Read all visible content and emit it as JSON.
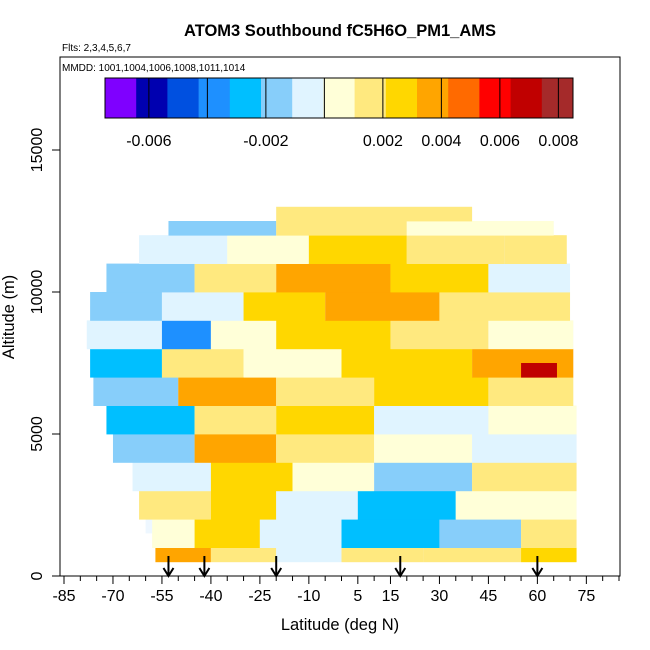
{
  "chart_data": {
    "type": "heatmap",
    "title": "ATOM3 Southbound fC5H6O_PM1_AMS",
    "flights_label": "Flts: 2,3,4,5,6,7",
    "dates_label": "MMDD: 1001,1004,1006,1008,1011,1014",
    "xlabel": "Latitude (deg N)",
    "ylabel": "Altitude (m)",
    "xlim": [
      -85,
      85
    ],
    "ylim": [
      0,
      17500
    ],
    "x_ticks": [
      -85,
      -70,
      -55,
      -40,
      -25,
      -10,
      5,
      15,
      30,
      45,
      60,
      75
    ],
    "x_tick_labels": [
      "-85",
      "-70",
      "-55",
      "-40",
      "-25",
      "-10",
      "5",
      "15",
      "30",
      "45",
      "60",
      "75"
    ],
    "x_minor_ticks": [
      -80,
      -75,
      -65,
      -60,
      -50,
      -45,
      -35,
      -30,
      -20,
      -15,
      -5,
      0,
      10,
      20,
      25,
      35,
      40,
      50,
      55,
      65,
      70,
      80,
      85
    ],
    "y_ticks": [
      0,
      5000,
      10000,
      15000
    ],
    "y_tick_labels": [
      "0",
      "5000",
      "10000",
      "15000"
    ],
    "colorbar": {
      "range": [
        -0.0075,
        0.0085
      ],
      "tick_values": [
        -0.006,
        -0.002,
        0.002,
        0.004,
        0.006,
        0.008
      ],
      "tick_labels": [
        "-0.006",
        "-0.002",
        "0.002",
        "0.004",
        "0.006",
        "0.008"
      ],
      "divisions": [
        -0.006,
        -0.004,
        -0.002,
        0.0,
        0.002,
        0.004,
        0.006,
        0.008
      ],
      "colors": [
        "#7f00ff",
        "#0000b0",
        "#0050e0",
        "#1e90ff",
        "#00bfff",
        "#87cefa",
        "#e0f4ff",
        "#ffffd8",
        "#ffe97f",
        "#ffd700",
        "#ffa500",
        "#ff6a00",
        "#ff0000",
        "#c00000",
        "#a52a2a"
      ]
    },
    "arrow_latitudes": [
      -53,
      -42,
      -20,
      18,
      60
    ],
    "domain_bands": [
      {
        "alt": [
          500,
          1000
        ],
        "lat": [
          -57,
          72
        ]
      },
      {
        "alt": [
          1000,
          1500
        ],
        "lat": [
          -58,
          72
        ]
      },
      {
        "alt": [
          1500,
          2000
        ],
        "lat": [
          -60,
          72
        ]
      },
      {
        "alt": [
          2000,
          2500
        ],
        "lat": [
          -61,
          72
        ]
      },
      {
        "alt": [
          2500,
          3000
        ],
        "lat": [
          -62,
          72
        ]
      },
      {
        "alt": [
          3000,
          3500
        ],
        "lat": [
          -63,
          72
        ]
      },
      {
        "alt": [
          3500,
          4000
        ],
        "lat": [
          -64,
          72
        ]
      },
      {
        "alt": [
          4000,
          4500
        ],
        "lat": [
          -66,
          72
        ]
      },
      {
        "alt": [
          4500,
          5000
        ],
        "lat": [
          -68,
          72
        ]
      },
      {
        "alt": [
          5000,
          5500
        ],
        "lat": [
          -70,
          72
        ]
      },
      {
        "alt": [
          5500,
          6000
        ],
        "lat": [
          -71,
          72
        ]
      },
      {
        "alt": [
          6000,
          6500
        ],
        "lat": [
          -72,
          71
        ]
      },
      {
        "alt": [
          6500,
          7000
        ],
        "lat": [
          -74,
          71
        ]
      },
      {
        "alt": [
          7000,
          7500
        ],
        "lat": [
          -76,
          71
        ]
      },
      {
        "alt": [
          7500,
          8000
        ],
        "lat": [
          -77,
          71
        ]
      },
      {
        "alt": [
          8000,
          8500
        ],
        "lat": [
          -78,
          71
        ]
      },
      {
        "alt": [
          8500,
          9000
        ],
        "lat": [
          -78,
          71
        ]
      },
      {
        "alt": [
          9000,
          9500
        ],
        "lat": [
          -77,
          70
        ]
      },
      {
        "alt": [
          9500,
          10000
        ],
        "lat": [
          -75,
          70
        ]
      },
      {
        "alt": [
          10000,
          10500
        ],
        "lat": [
          -72,
          70
        ]
      },
      {
        "alt": [
          10500,
          11000
        ],
        "lat": [
          -67,
          70
        ]
      },
      {
        "alt": [
          11000,
          11500
        ],
        "lat": [
          -62,
          69
        ]
      },
      {
        "alt": [
          11500,
          12000
        ],
        "lat": [
          -58,
          68
        ]
      },
      {
        "alt": [
          12000,
          12500
        ],
        "lat": [
          -53,
          65
        ]
      },
      {
        "alt": [
          12500,
          13000
        ],
        "lat": [
          -20,
          40
        ]
      }
    ],
    "cells": [
      {
        "lat": [
          -57,
          -40
        ],
        "alt": [
          500,
          1000
        ],
        "v": 0.004
      },
      {
        "lat": [
          -40,
          -20
        ],
        "alt": [
          500,
          1000
        ],
        "v": 0.002
      },
      {
        "lat": [
          -20,
          0
        ],
        "alt": [
          500,
          1000
        ],
        "v": -0.001
      },
      {
        "lat": [
          0,
          25
        ],
        "alt": [
          500,
          1000
        ],
        "v": 0.0015
      },
      {
        "lat": [
          25,
          55
        ],
        "alt": [
          500,
          1000
        ],
        "v": 0.0015
      },
      {
        "lat": [
          55,
          72
        ],
        "alt": [
          500,
          1000
        ],
        "v": 0.003
      },
      {
        "lat": [
          -58,
          -45
        ],
        "alt": [
          1000,
          2000
        ],
        "v": 0.0008
      },
      {
        "lat": [
          -45,
          -25
        ],
        "alt": [
          1000,
          2000
        ],
        "v": 0.0025
      },
      {
        "lat": [
          -25,
          0
        ],
        "alt": [
          1000,
          2000
        ],
        "v": -0.001
      },
      {
        "lat": [
          0,
          30
        ],
        "alt": [
          1000,
          2000
        ],
        "v": -0.0032
      },
      {
        "lat": [
          30,
          55
        ],
        "alt": [
          1000,
          2000
        ],
        "v": -0.0015
      },
      {
        "lat": [
          55,
          72
        ],
        "alt": [
          1000,
          2000
        ],
        "v": 0.0015
      },
      {
        "lat": [
          -62,
          -40
        ],
        "alt": [
          2000,
          3000
        ],
        "v": 0.0015
      },
      {
        "lat": [
          -40,
          -20
        ],
        "alt": [
          2000,
          3000
        ],
        "v": 0.0028
      },
      {
        "lat": [
          -20,
          5
        ],
        "alt": [
          2000,
          3000
        ],
        "v": -0.0008
      },
      {
        "lat": [
          5,
          35
        ],
        "alt": [
          2000,
          3000
        ],
        "v": -0.0025
      },
      {
        "lat": [
          35,
          72
        ],
        "alt": [
          2000,
          3000
        ],
        "v": 0.001
      },
      {
        "lat": [
          -64,
          -40
        ],
        "alt": [
          3000,
          4000
        ],
        "v": -0.0006
      },
      {
        "lat": [
          -40,
          -15
        ],
        "alt": [
          3000,
          4000
        ],
        "v": 0.0022
      },
      {
        "lat": [
          -15,
          10
        ],
        "alt": [
          3000,
          4000
        ],
        "v": 0.0006
      },
      {
        "lat": [
          10,
          40
        ],
        "alt": [
          3000,
          4000
        ],
        "v": -0.0014
      },
      {
        "lat": [
          40,
          72
        ],
        "alt": [
          3000,
          4000
        ],
        "v": 0.0012
      },
      {
        "lat": [
          -70,
          -45
        ],
        "alt": [
          4000,
          5000
        ],
        "v": -0.0018
      },
      {
        "lat": [
          -45,
          -20
        ],
        "alt": [
          4000,
          5000
        ],
        "v": 0.0035
      },
      {
        "lat": [
          -20,
          10
        ],
        "alt": [
          4000,
          5000
        ],
        "v": 0.0014
      },
      {
        "lat": [
          10,
          40
        ],
        "alt": [
          4000,
          5000
        ],
        "v": 0.0008
      },
      {
        "lat": [
          40,
          72
        ],
        "alt": [
          4000,
          5000
        ],
        "v": -0.001
      },
      {
        "lat": [
          -72,
          -45
        ],
        "alt": [
          5000,
          6000
        ],
        "v": -0.0022
      },
      {
        "lat": [
          -45,
          -20
        ],
        "alt": [
          5000,
          6000
        ],
        "v": 0.0018
      },
      {
        "lat": [
          -20,
          10
        ],
        "alt": [
          5000,
          6000
        ],
        "v": 0.0022
      },
      {
        "lat": [
          10,
          45
        ],
        "alt": [
          5000,
          6000
        ],
        "v": -0.0008
      },
      {
        "lat": [
          45,
          72
        ],
        "alt": [
          5000,
          6000
        ],
        "v": 0.001
      },
      {
        "lat": [
          -76,
          -50
        ],
        "alt": [
          6000,
          7000
        ],
        "v": -0.0012
      },
      {
        "lat": [
          -50,
          -20
        ],
        "alt": [
          6000,
          7000
        ],
        "v": 0.0032
      },
      {
        "lat": [
          -20,
          10
        ],
        "alt": [
          6000,
          7000
        ],
        "v": 0.0012
      },
      {
        "lat": [
          10,
          45
        ],
        "alt": [
          6000,
          7000
        ],
        "v": 0.0025
      },
      {
        "lat": [
          45,
          71
        ],
        "alt": [
          6000,
          7000
        ],
        "v": 0.0018
      },
      {
        "lat": [
          -77,
          -55
        ],
        "alt": [
          7000,
          8000
        ],
        "v": -0.0025
      },
      {
        "lat": [
          -55,
          -30
        ],
        "alt": [
          7000,
          8000
        ],
        "v": 0.0015
      },
      {
        "lat": [
          -30,
          0
        ],
        "alt": [
          7000,
          8000
        ],
        "v": 0.0008
      },
      {
        "lat": [
          0,
          40
        ],
        "alt": [
          7000,
          8000
        ],
        "v": 0.0022
      },
      {
        "lat": [
          40,
          71
        ],
        "alt": [
          7000,
          8000
        ],
        "v": 0.0042
      },
      {
        "lat": [
          55,
          66
        ],
        "alt": [
          7000,
          7500
        ],
        "v": 0.0068
      },
      {
        "lat": [
          -78,
          -55
        ],
        "alt": [
          8000,
          9000
        ],
        "v": -0.0008
      },
      {
        "lat": [
          -55,
          -40
        ],
        "alt": [
          8000,
          9000
        ],
        "v": -0.0035
      },
      {
        "lat": [
          -40,
          -20
        ],
        "alt": [
          8000,
          9000
        ],
        "v": 0.0008
      },
      {
        "lat": [
          -20,
          15
        ],
        "alt": [
          8000,
          9000
        ],
        "v": 0.0028
      },
      {
        "lat": [
          15,
          45
        ],
        "alt": [
          8000,
          9000
        ],
        "v": 0.0016
      },
      {
        "lat": [
          45,
          71
        ],
        "alt": [
          8000,
          9000
        ],
        "v": 0.0008
      },
      {
        "lat": [
          -77,
          -55
        ],
        "alt": [
          9000,
          10000
        ],
        "v": -0.0012
      },
      {
        "lat": [
          -55,
          -30
        ],
        "alt": [
          9000,
          10000
        ],
        "v": -0.0006
      },
      {
        "lat": [
          -30,
          -5
        ],
        "alt": [
          9000,
          10000
        ],
        "v": 0.0022
      },
      {
        "lat": [
          -5,
          30
        ],
        "alt": [
          9000,
          10000
        ],
        "v": 0.0038
      },
      {
        "lat": [
          30,
          70
        ],
        "alt": [
          9000,
          10000
        ],
        "v": 0.0012
      },
      {
        "lat": [
          -72,
          -45
        ],
        "alt": [
          10000,
          11000
        ],
        "v": -0.0014
      },
      {
        "lat": [
          -45,
          -20
        ],
        "alt": [
          10000,
          11000
        ],
        "v": 0.0012
      },
      {
        "lat": [
          -20,
          15
        ],
        "alt": [
          10000,
          11000
        ],
        "v": 0.0034
      },
      {
        "lat": [
          15,
          45
        ],
        "alt": [
          10000,
          11000
        ],
        "v": 0.0024
      },
      {
        "lat": [
          45,
          70
        ],
        "alt": [
          10000,
          11000
        ],
        "v": -0.0006
      },
      {
        "lat": [
          -62,
          -35
        ],
        "alt": [
          11000,
          12000
        ],
        "v": -0.0008
      },
      {
        "lat": [
          -35,
          -10
        ],
        "alt": [
          11000,
          12000
        ],
        "v": 0.0006
      },
      {
        "lat": [
          -10,
          20
        ],
        "alt": [
          11000,
          12000
        ],
        "v": 0.0028
      },
      {
        "lat": [
          20,
          50
        ],
        "alt": [
          11000,
          12000
        ],
        "v": 0.0018
      },
      {
        "lat": [
          50,
          69
        ],
        "alt": [
          11000,
          12000
        ],
        "v": 0.0014
      },
      {
        "lat": [
          -53,
          -20
        ],
        "alt": [
          12000,
          12500
        ],
        "v": -0.0016
      },
      {
        "lat": [
          -20,
          20
        ],
        "alt": [
          12000,
          12500
        ],
        "v": 0.0014
      },
      {
        "lat": [
          20,
          65
        ],
        "alt": [
          12000,
          12500
        ],
        "v": 0.0006
      },
      {
        "lat": [
          -20,
          40
        ],
        "alt": [
          12500,
          13000
        ],
        "v": 0.0012
      }
    ]
  }
}
